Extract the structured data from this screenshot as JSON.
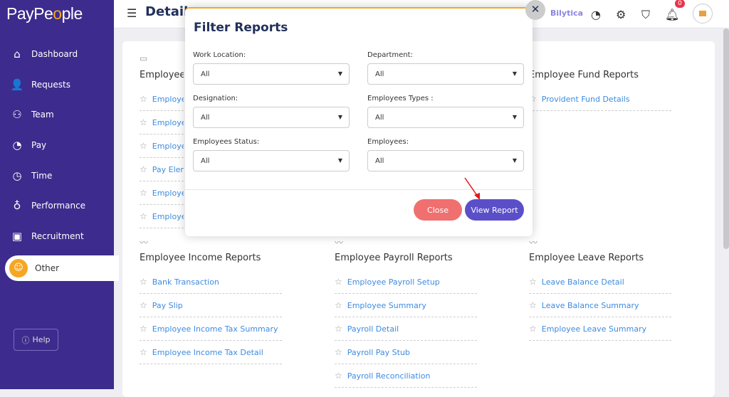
{
  "brand": {
    "name_a": "PayPe",
    "name_b": "o",
    "name_c": "ple"
  },
  "sidebar": {
    "items": [
      {
        "label": "Dashboard",
        "icon": "home-icon"
      },
      {
        "label": "Requests",
        "icon": "user-question-icon"
      },
      {
        "label": "Team",
        "icon": "team-icon"
      },
      {
        "label": "Pay",
        "icon": "wallet-icon"
      },
      {
        "label": "Time",
        "icon": "clock-icon"
      },
      {
        "label": "Performance",
        "icon": "award-icon"
      },
      {
        "label": "Recruitment",
        "icon": "briefcase-icon"
      },
      {
        "label": "Other",
        "icon": "user-icon"
      }
    ],
    "help": "Help"
  },
  "header": {
    "title": "Detail",
    "bilytica": "Bilytica",
    "notifications": "0"
  },
  "sections": [
    {
      "title": "Employee Reports",
      "items": [
        "Employee",
        "Employee",
        "Employee",
        "Pay Elem",
        "Employee",
        "Employee"
      ]
    },
    {
      "title": "Employee Fund Reports",
      "items": [
        "Provident Fund Details"
      ]
    },
    {
      "title": "Employee Income Reports",
      "items": [
        "Bank Transaction",
        "Pay Slip",
        "Employee Income Tax Summary",
        "Employee Income Tax Detail"
      ]
    },
    {
      "title": "Employee Payroll Reports",
      "items": [
        "Employee Payroll Setup",
        "Employee Summary",
        "Payroll Detail",
        "Payroll Pay Stub",
        "Payroll Reconciliation"
      ]
    },
    {
      "title": "Employee Leave Reports",
      "items": [
        "Leave Balance Detail",
        "Leave Balance Summary",
        "Employee Leave Summary"
      ]
    }
  ],
  "modal": {
    "title": "Filter Reports",
    "fields": [
      {
        "label": "Work Location:",
        "value": "All"
      },
      {
        "label": "Department:",
        "value": "All"
      },
      {
        "label": "Designation:",
        "value": "All"
      },
      {
        "label": "Employees Types :",
        "value": "All"
      },
      {
        "label": "Employees Status:",
        "value": "All"
      },
      {
        "label": "Employees:",
        "value": "All"
      }
    ],
    "close": "Close",
    "view": "View Report"
  },
  "colors": {
    "sidebar": "#3d2c8d",
    "accent": "#f5a623",
    "close_btn": "#f07070",
    "view_btn": "#5b4fc9",
    "link": "#3d8be0"
  }
}
